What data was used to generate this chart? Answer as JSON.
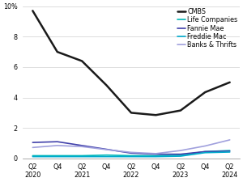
{
  "x_labels": [
    "Q2\n2020",
    "Q4",
    "Q2\n2021",
    "Q4",
    "Q2\n2022",
    "Q4",
    "Q2\n2023",
    "Q4",
    "Q2\n2024"
  ],
  "x_positions": [
    0,
    1,
    2,
    3,
    4,
    5,
    6,
    7,
    8
  ],
  "series": {
    "CMBS": {
      "color": "#1a1a1a",
      "linewidth": 1.8,
      "values": [
        9.7,
        7.0,
        6.4,
        4.8,
        3.0,
        2.85,
        3.15,
        4.35,
        5.0
      ]
    },
    "Life Companies": {
      "color": "#00b8b8",
      "linewidth": 1.2,
      "values": [
        0.18,
        0.18,
        0.18,
        0.22,
        0.18,
        0.18,
        0.22,
        0.45,
        0.52
      ]
    },
    "Fannie Mae": {
      "color": "#4040aa",
      "linewidth": 1.2,
      "values": [
        1.05,
        1.1,
        0.85,
        0.6,
        0.35,
        0.28,
        0.28,
        0.45,
        0.48
      ]
    },
    "Freddie Mac": {
      "color": "#00aacc",
      "linewidth": 1.2,
      "values": [
        0.12,
        0.12,
        0.12,
        0.12,
        0.12,
        0.12,
        0.15,
        0.38,
        0.42
      ]
    },
    "Banks & Thrifts": {
      "color": "#a0a0dd",
      "linewidth": 1.2,
      "values": [
        0.72,
        0.85,
        0.78,
        0.58,
        0.4,
        0.32,
        0.52,
        0.82,
        1.22
      ]
    }
  },
  "ylim": [
    0,
    10
  ],
  "yticks": [
    0,
    2,
    4,
    6,
    8,
    10
  ],
  "ytick_labels": [
    "0",
    "2",
    "4",
    "6",
    "8",
    "10%"
  ],
  "background_color": "#ffffff",
  "grid_color": "#d0d0d0",
  "legend_fontsize": 5.8,
  "tick_fontsize": 5.8,
  "figsize": [
    3.0,
    2.25
  ],
  "dpi": 100
}
